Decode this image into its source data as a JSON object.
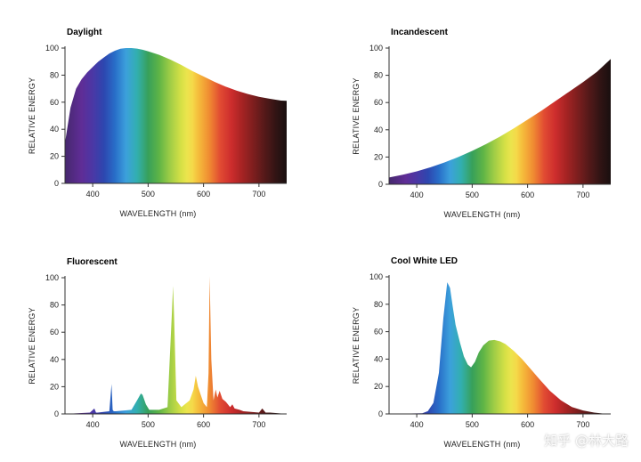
{
  "watermark": "知乎 @林大路",
  "chart_data": [
    {
      "type": "area",
      "title": "Daylight",
      "xlabel": "WAVELENGTH (nm)",
      "ylabel": "RELATIVE ENERGY",
      "xlim": [
        350,
        750
      ],
      "ylim": [
        0,
        100
      ],
      "xticks": [
        400,
        500,
        600,
        700
      ],
      "yticks": [
        0,
        20,
        40,
        60,
        80,
        100
      ],
      "fill": "visible-spectrum",
      "x": [
        350,
        360,
        370,
        380,
        390,
        400,
        410,
        420,
        430,
        440,
        450,
        460,
        470,
        480,
        490,
        500,
        520,
        540,
        560,
        580,
        600,
        620,
        640,
        660,
        680,
        700,
        720,
        740,
        750
      ],
      "y": [
        30,
        56,
        70,
        77,
        82,
        86,
        90,
        93,
        96,
        98,
        99.5,
        100,
        100,
        99.6,
        98.8,
        97.6,
        95,
        91.5,
        87.5,
        83,
        79,
        75,
        71.5,
        68.5,
        66,
        64,
        62.5,
        61.2,
        61
      ]
    },
    {
      "type": "area",
      "title": "Incandescent",
      "xlabel": "WAVELENGTH (nm)",
      "ylabel": "RELATIVE ENERGY",
      "xlim": [
        350,
        750
      ],
      "ylim": [
        0,
        100
      ],
      "xticks": [
        400,
        500,
        600,
        700
      ],
      "yticks": [
        0,
        20,
        40,
        60,
        80,
        100
      ],
      "fill": "visible-spectrum",
      "x": [
        350,
        375,
        400,
        425,
        450,
        475,
        500,
        525,
        550,
        575,
        600,
        625,
        650,
        675,
        700,
        725,
        750
      ],
      "y": [
        5,
        7,
        9.5,
        12.5,
        16,
        20,
        24.5,
        29.5,
        35,
        41,
        47.5,
        54,
        61,
        68,
        75,
        82.5,
        92
      ]
    },
    {
      "type": "area",
      "title": "Fluorescent",
      "xlabel": "WAVELENGTH (nm)",
      "ylabel": "RELATIVE ENERGY",
      "xlim": [
        350,
        750
      ],
      "ylim": [
        0,
        100
      ],
      "xticks": [
        400,
        500,
        600,
        700
      ],
      "yticks": [
        0,
        20,
        40,
        60,
        80,
        100
      ],
      "fill": "visible-spectrum",
      "x": [
        350,
        395,
        403,
        406,
        409,
        430,
        434,
        436,
        438,
        442,
        470,
        480,
        487,
        490,
        496,
        502,
        520,
        535,
        543,
        545,
        547,
        551,
        560,
        575,
        582,
        586,
        590,
        595,
        600,
        606,
        609,
        611,
        614,
        618,
        622,
        625,
        629,
        634,
        640,
        648,
        652,
        656,
        665,
        672,
        700,
        706,
        712,
        720,
        750
      ],
      "y": [
        0,
        1,
        4,
        1,
        1,
        2,
        22,
        3,
        2,
        2,
        3,
        10,
        15,
        14,
        7,
        3,
        3,
        5,
        75,
        94,
        70,
        10,
        5,
        10,
        18,
        28,
        20,
        14,
        8,
        5,
        30,
        101,
        40,
        10,
        18,
        12,
        17,
        11,
        9,
        5,
        7,
        4,
        3,
        2,
        1,
        4,
        1,
        1,
        0
      ]
    },
    {
      "type": "area",
      "title": "Cool White LED",
      "xlabel": "WAVELENGTH (nm)",
      "ylabel": "RELATIVE ENERGY",
      "xlim": [
        350,
        750
      ],
      "ylim": [
        0,
        100
      ],
      "xticks": [
        400,
        500,
        600,
        700
      ],
      "yticks": [
        0,
        20,
        40,
        60,
        80,
        100
      ],
      "fill": "visible-spectrum",
      "x": [
        350,
        410,
        420,
        430,
        440,
        448,
        455,
        460,
        465,
        470,
        478,
        485,
        492,
        498,
        505,
        512,
        520,
        530,
        540,
        550,
        560,
        575,
        590,
        605,
        620,
        640,
        660,
        680,
        700,
        720,
        735,
        750
      ],
      "y": [
        0,
        0.5,
        2,
        8,
        30,
        70,
        96,
        92,
        78,
        65,
        52,
        42,
        36,
        34,
        38,
        45,
        50,
        53.5,
        54,
        53,
        51,
        46,
        40,
        33,
        26,
        17,
        10,
        5,
        2.5,
        1,
        0.3,
        0
      ]
    }
  ]
}
